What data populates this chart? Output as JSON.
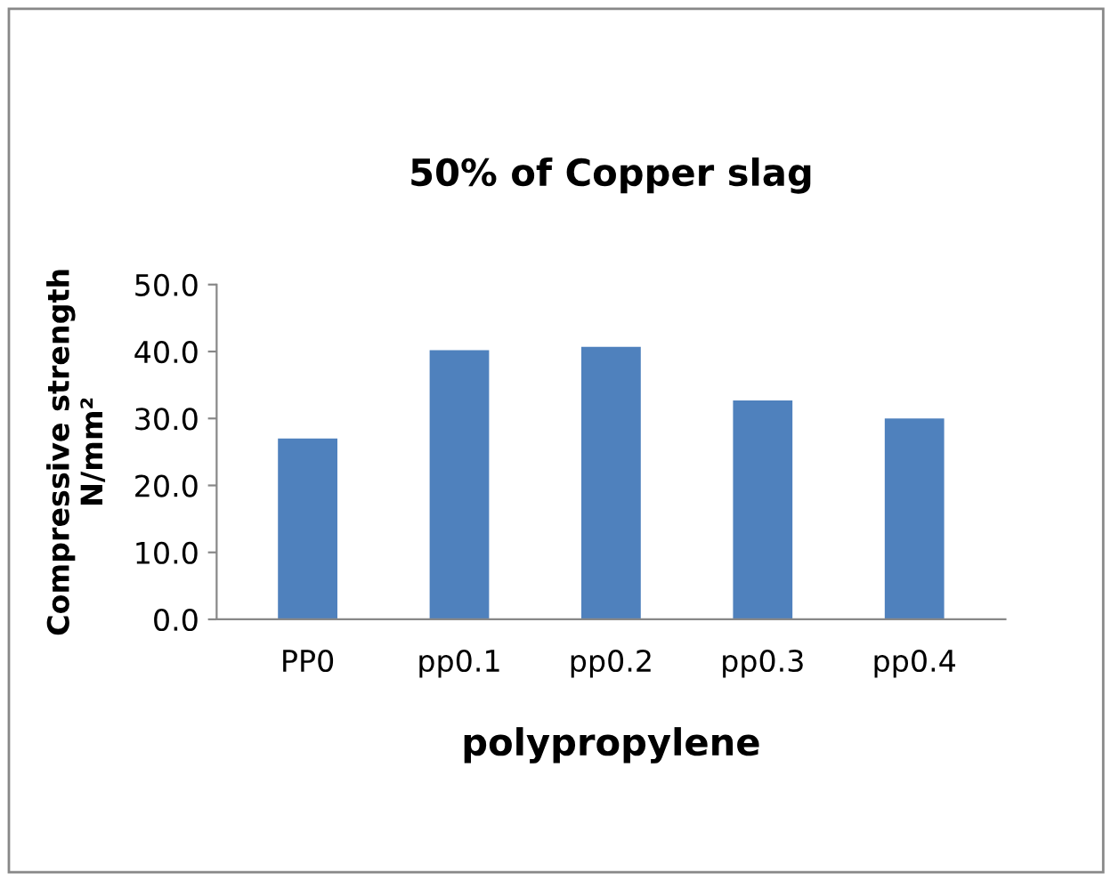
{
  "chart_data": {
    "type": "bar",
    "title": "50% of Copper slag",
    "xlabel": "polypropylene",
    "ylabel": "Compressive strength\nN/mm²",
    "categories": [
      "PP0",
      "pp0.1",
      "pp0.2",
      "pp0.3",
      "pp0.4"
    ],
    "values": [
      27.1,
      40.3,
      40.8,
      32.8,
      30.1
    ],
    "color": "#4f81bd",
    "ylim": [
      0,
      50
    ],
    "yticks": [
      {
        "value": 0,
        "label": "0.0"
      },
      {
        "value": 10,
        "label": "10.0"
      },
      {
        "value": 20,
        "label": "20.0"
      },
      {
        "value": 30,
        "label": "30.0"
      },
      {
        "value": 40,
        "label": "40.0"
      },
      {
        "value": 50,
        "label": "50.0"
      }
    ],
    "grid": false,
    "legend": false
  }
}
